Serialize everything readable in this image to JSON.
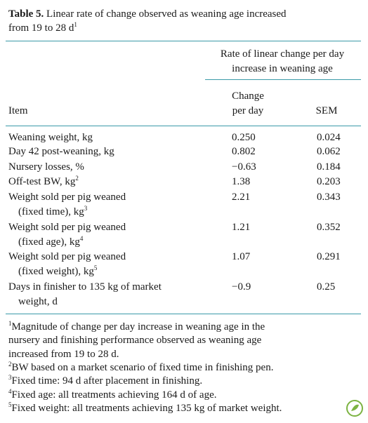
{
  "title": {
    "label": "Table 5.",
    "text": "Linear rate of change observed as weaning age increased",
    "text2": "from 19 to 28 d",
    "sup": "1"
  },
  "table": {
    "group_header": [
      "Rate of linear change per day",
      "increase in weaning age"
    ],
    "columns": [
      {
        "lines": [
          "Item"
        ]
      },
      {
        "lines": [
          "Change",
          "per day"
        ]
      },
      {
        "lines": [
          "SEM"
        ]
      }
    ],
    "rows": [
      {
        "item": [
          "Weaning weight, kg"
        ],
        "sup": null,
        "change": "0.250",
        "sem": "0.024"
      },
      {
        "item": [
          "Day 42 post-weaning, kg"
        ],
        "sup": null,
        "change": "0.802",
        "sem": "0.062"
      },
      {
        "item": [
          "Nursery losses, %"
        ],
        "sup": null,
        "change": "−0.63",
        "sem": "0.184"
      },
      {
        "item": [
          "Off-test BW, kg"
        ],
        "sup": "2",
        "change": "1.38",
        "sem": "0.203"
      },
      {
        "item": [
          "Weight sold per pig weaned",
          "(fixed time), kg"
        ],
        "sup": "3",
        "change": "2.21",
        "sem": "0.343"
      },
      {
        "item": [
          "Weight sold per pig weaned",
          "(fixed age), kg"
        ],
        "sup": "4",
        "change": "1.21",
        "sem": "0.352"
      },
      {
        "item": [
          "Weight sold per pig weaned",
          "(fixed weight), kg"
        ],
        "sup": "5",
        "change": "1.07",
        "sem": "0.291"
      },
      {
        "item": [
          "Days in finisher to 135 kg of market",
          "weight, d"
        ],
        "sup": null,
        "change": "−0.9",
        "sem": "0.25"
      }
    ]
  },
  "footnotes": [
    {
      "mark": "1",
      "lines": [
        "Magnitude of change per day increase in weaning age in the",
        "nursery and finishing performance observed as weaning age",
        "increased from 19 to 28 d."
      ]
    },
    {
      "mark": "2",
      "lines": [
        "BW based on a market scenario of fixed time in finishing pen."
      ]
    },
    {
      "mark": "3",
      "lines": [
        "Fixed time: 94 d after placement in finishing."
      ]
    },
    {
      "mark": "4",
      "lines": [
        "Fixed age: all treatments achieving 164 d of age."
      ]
    },
    {
      "mark": "5",
      "lines": [
        "Fixed weight: all treatments achieving 135 kg of market weight."
      ]
    }
  ]
}
